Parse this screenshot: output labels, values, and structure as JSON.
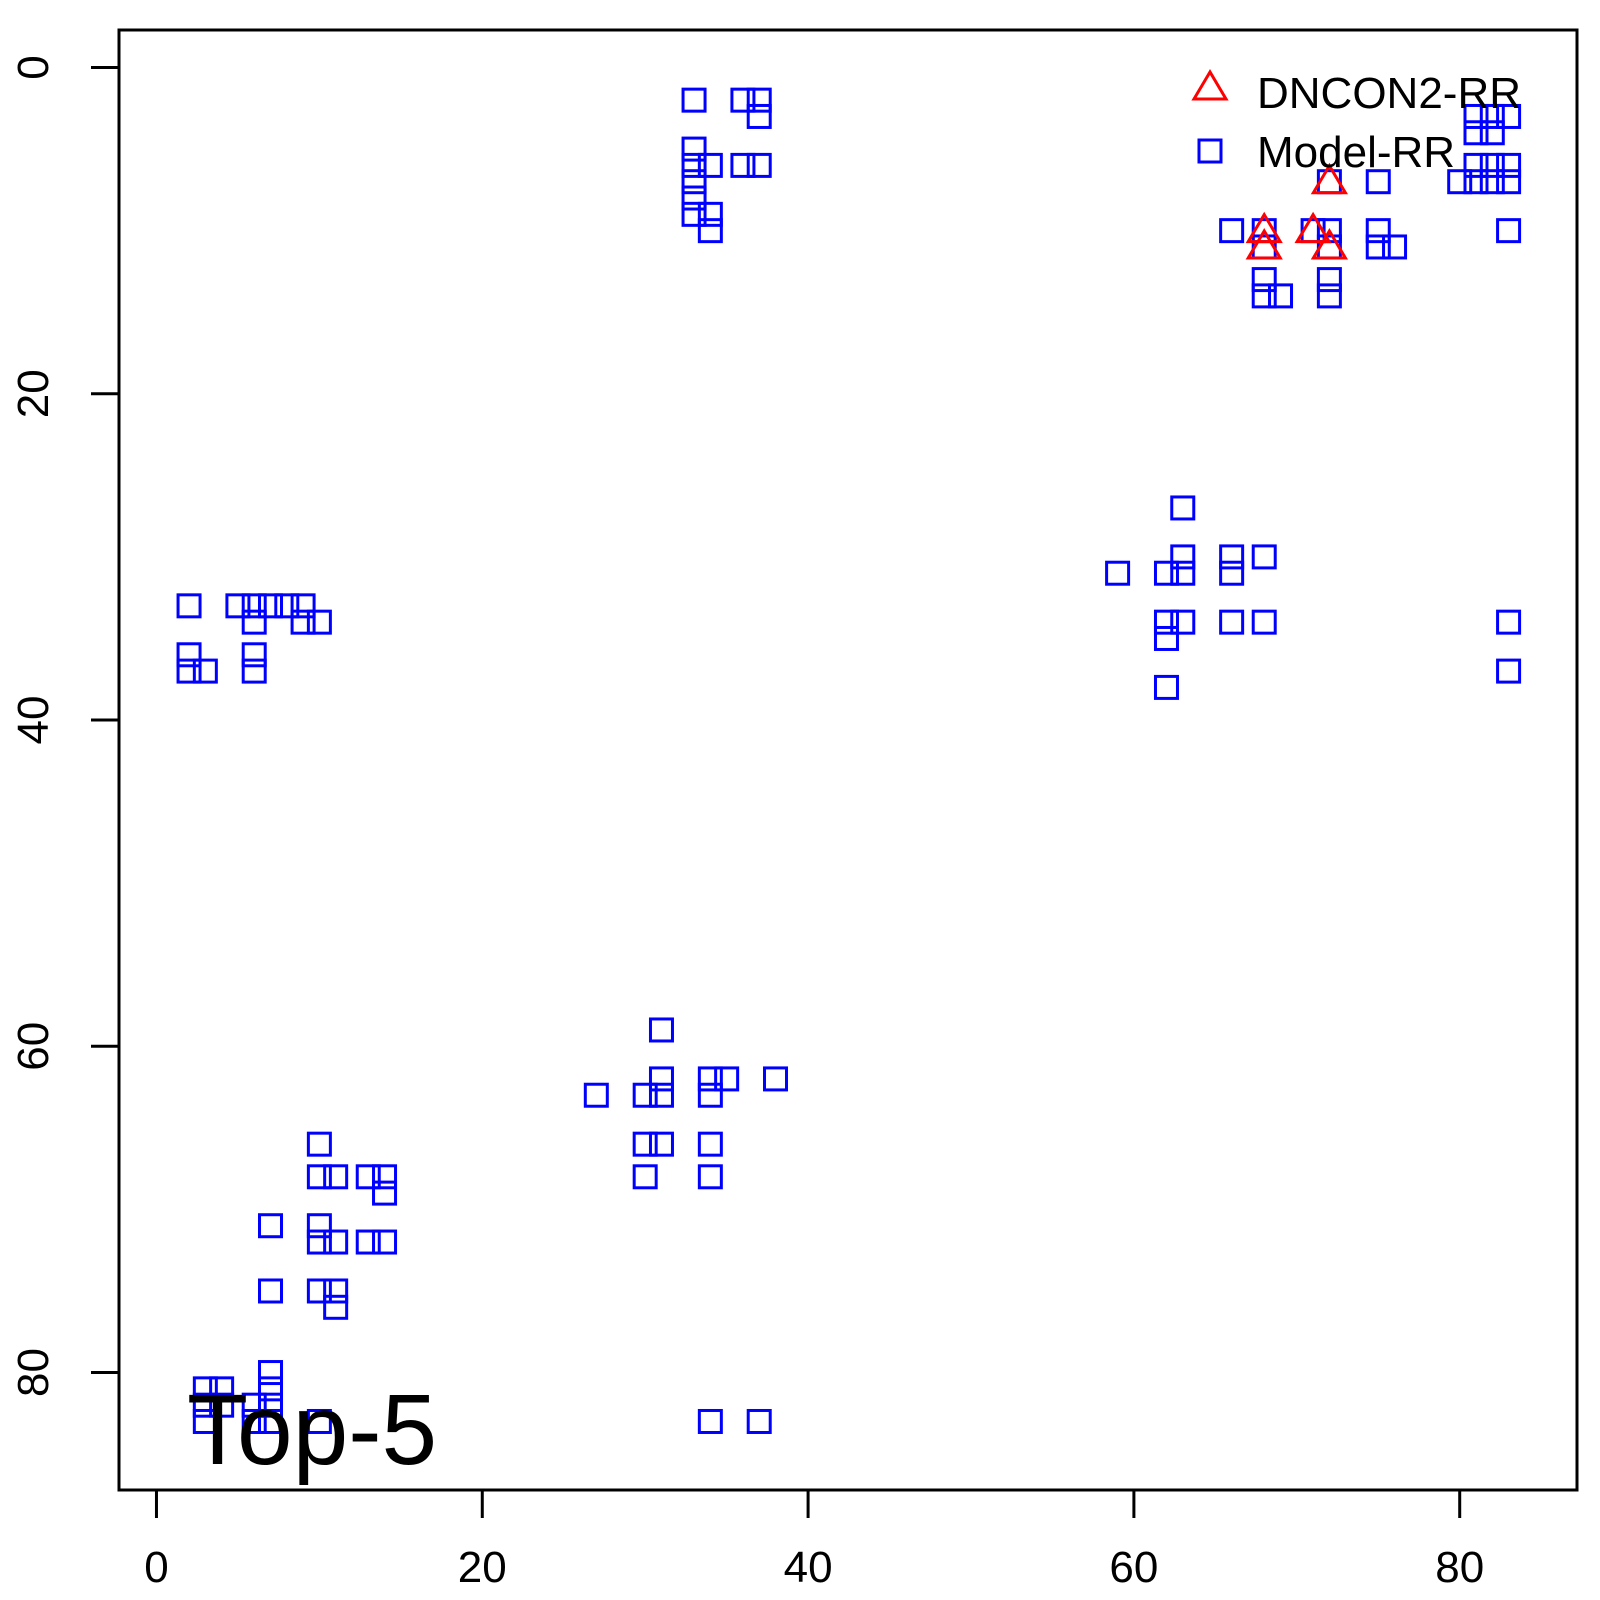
{
  "chart_data": {
    "type": "scatter",
    "title": "",
    "xlabel": "",
    "ylabel": "",
    "xlim": [
      -2.3,
      87.2
    ],
    "ylim": [
      -2.3,
      87.2
    ],
    "y_reversed": true,
    "grid": false,
    "x_ticks": [
      0,
      20,
      40,
      60,
      80
    ],
    "y_ticks": [
      0,
      20,
      40,
      60,
      80
    ],
    "annotation": "Top-5",
    "legend": {
      "placement": "top-right"
    },
    "series": [
      {
        "name": "DNCON2-RR",
        "marker": "triangle",
        "color": "#ff0000",
        "points": [
          [
            72,
            7
          ],
          [
            68,
            10
          ],
          [
            68,
            11
          ],
          [
            71,
            10
          ],
          [
            72,
            11
          ]
        ]
      },
      {
        "name": "Model-RR",
        "marker": "square",
        "color": "#0000ff",
        "points": [
          [
            33,
            2
          ],
          [
            36,
            2
          ],
          [
            37,
            2
          ],
          [
            37,
            3
          ],
          [
            33,
            5
          ],
          [
            33,
            6
          ],
          [
            34,
            6
          ],
          [
            36,
            6
          ],
          [
            37,
            6
          ],
          [
            33,
            7
          ],
          [
            33,
            8
          ],
          [
            33,
            9
          ],
          [
            34,
            9
          ],
          [
            34,
            10
          ],
          [
            72,
            7
          ],
          [
            75,
            7
          ],
          [
            80,
            7
          ],
          [
            81,
            7
          ],
          [
            82,
            7
          ],
          [
            83,
            7
          ],
          [
            81,
            3
          ],
          [
            81,
            4
          ],
          [
            82,
            3
          ],
          [
            82,
            4
          ],
          [
            83,
            3
          ],
          [
            82,
            6
          ],
          [
            83,
            6
          ],
          [
            81,
            6
          ],
          [
            83,
            10
          ],
          [
            66,
            10
          ],
          [
            68,
            10
          ],
          [
            71,
            10
          ],
          [
            72,
            10
          ],
          [
            75,
            10
          ],
          [
            68,
            11
          ],
          [
            72,
            11
          ],
          [
            75,
            11
          ],
          [
            76,
            11
          ],
          [
            68,
            13
          ],
          [
            72,
            13
          ],
          [
            68,
            14
          ],
          [
            69,
            14
          ],
          [
            72,
            14
          ],
          [
            63,
            27
          ],
          [
            63,
            30
          ],
          [
            66,
            30
          ],
          [
            68,
            30
          ],
          [
            59,
            31
          ],
          [
            62,
            31
          ],
          [
            63,
            31
          ],
          [
            66,
            31
          ],
          [
            62,
            34
          ],
          [
            63,
            34
          ],
          [
            66,
            34
          ],
          [
            68,
            34
          ],
          [
            83,
            34
          ],
          [
            62,
            35
          ],
          [
            83,
            37
          ],
          [
            62,
            38
          ],
          [
            2,
            33
          ],
          [
            5,
            33
          ],
          [
            6,
            33
          ],
          [
            7,
            33
          ],
          [
            8,
            33
          ],
          [
            9,
            33
          ],
          [
            6,
            34
          ],
          [
            9,
            34
          ],
          [
            10,
            34
          ],
          [
            2,
            36
          ],
          [
            6,
            36
          ],
          [
            2,
            37
          ],
          [
            3,
            37
          ],
          [
            6,
            37
          ],
          [
            31,
            59
          ],
          [
            31,
            62
          ],
          [
            34,
            62
          ],
          [
            35,
            62
          ],
          [
            38,
            62
          ],
          [
            27,
            63
          ],
          [
            30,
            63
          ],
          [
            31,
            63
          ],
          [
            34,
            63
          ],
          [
            30,
            66
          ],
          [
            31,
            66
          ],
          [
            34,
            66
          ],
          [
            30,
            68
          ],
          [
            34,
            68
          ],
          [
            10,
            66
          ],
          [
            10,
            68
          ],
          [
            11,
            68
          ],
          [
            13,
            68
          ],
          [
            14,
            68
          ],
          [
            14,
            69
          ],
          [
            7,
            71
          ],
          [
            10,
            71
          ],
          [
            10,
            72
          ],
          [
            11,
            72
          ],
          [
            13,
            72
          ],
          [
            14,
            72
          ],
          [
            7,
            75
          ],
          [
            10,
            75
          ],
          [
            11,
            75
          ],
          [
            11,
            76
          ],
          [
            7,
            80
          ],
          [
            7,
            81
          ],
          [
            3,
            81
          ],
          [
            4,
            81
          ],
          [
            7,
            82
          ],
          [
            3,
            82
          ],
          [
            4,
            82
          ],
          [
            6,
            82
          ],
          [
            7,
            83
          ],
          [
            3,
            83
          ],
          [
            6,
            83
          ],
          [
            10,
            83
          ],
          [
            34,
            83
          ],
          [
            37,
            83
          ]
        ]
      }
    ]
  }
}
